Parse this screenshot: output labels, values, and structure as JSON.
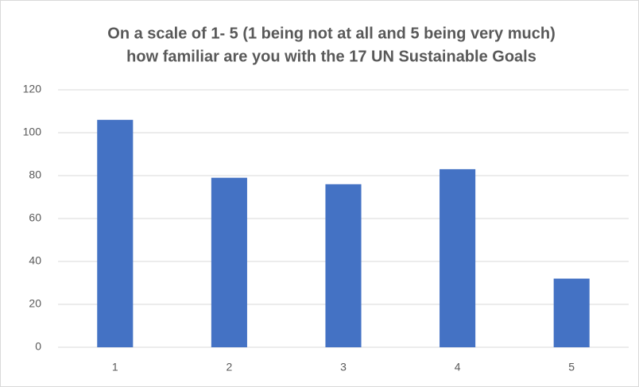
{
  "chart_data": {
    "type": "bar",
    "title": [
      "On a scale of 1- 5 (1 being not at all and 5 being very much)",
      "how familiar are you with the 17 UN Sustainable Goals"
    ],
    "categories": [
      "1",
      "2",
      "3",
      "4",
      "5"
    ],
    "values": [
      106,
      79,
      76,
      83,
      32
    ],
    "color": "#4472c4",
    "ylim": [
      0,
      120
    ],
    "yticks": [
      0,
      20,
      40,
      60,
      80,
      100,
      120
    ],
    "grid": true
  }
}
